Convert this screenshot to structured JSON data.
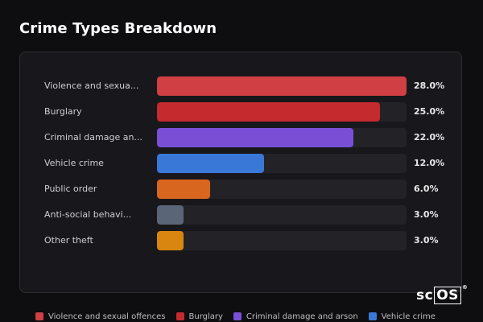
{
  "title": "Crime Types Breakdown",
  "logo": {
    "prefix": "sc",
    "boxed": "OS",
    "mark": "®"
  },
  "chart_data": {
    "type": "bar",
    "orientation": "horizontal",
    "categories": [
      "Violence and sexual offences",
      "Burglary",
      "Criminal damage and arson",
      "Vehicle crime",
      "Public order",
      "Anti-social behaviour",
      "Other theft"
    ],
    "display_labels": [
      "Violence and sexua...",
      "Burglary",
      "Criminal damage an...",
      "Vehicle crime",
      "Public order",
      "Anti-social behavi...",
      "Other theft"
    ],
    "values": [
      28.0,
      25.0,
      22.0,
      12.0,
      6.0,
      3.0,
      3.0
    ],
    "value_labels": [
      "28.0%",
      "25.0%",
      "22.0%",
      "12.0%",
      "6.0%",
      "3.0%",
      "3.0%"
    ],
    "colors": [
      "#cf3f44",
      "#c42a2e",
      "#7a4fd6",
      "#3a78d8",
      "#d9661f",
      "#5a6578",
      "#d8860f"
    ],
    "xlim": [
      0,
      28
    ],
    "grid": false,
    "legend_position": "bottom"
  },
  "legend": [
    {
      "label": "Violence and sexual offences",
      "color": "#cf3f44"
    },
    {
      "label": "Burglary",
      "color": "#c42a2e"
    },
    {
      "label": "Criminal damage and arson",
      "color": "#7a4fd6"
    },
    {
      "label": "Vehicle crime",
      "color": "#3a78d8"
    }
  ]
}
